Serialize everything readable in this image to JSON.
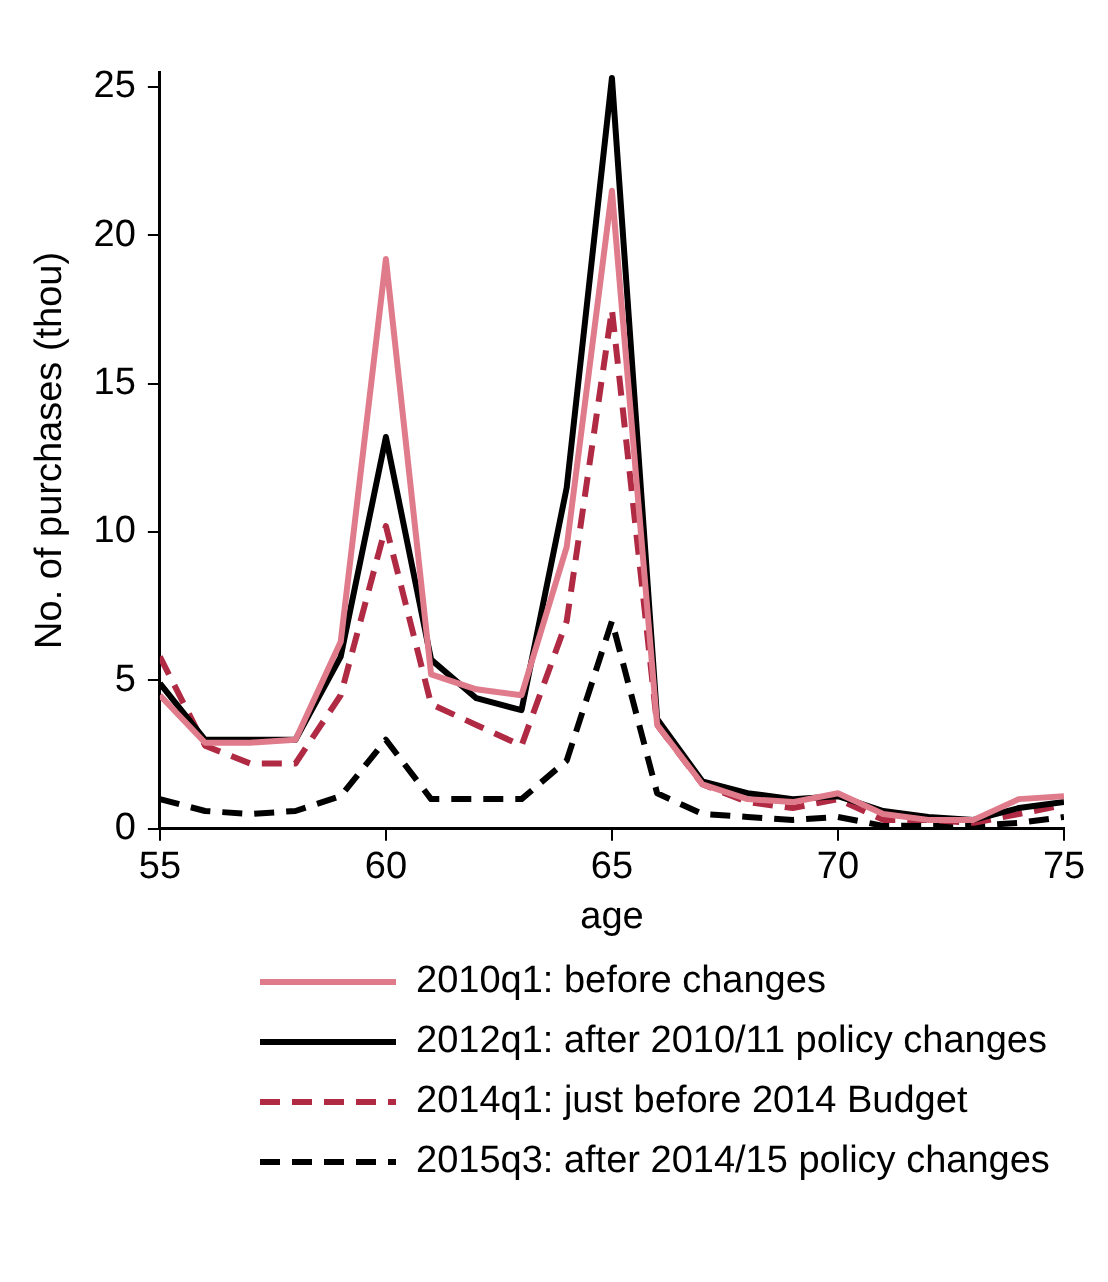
{
  "chart_data": {
    "type": "line",
    "xlabel": "age",
    "ylabel": "No. of purchases (thou)",
    "x": [
      55,
      56,
      57,
      58,
      59,
      60,
      61,
      62,
      63,
      64,
      65,
      66,
      67,
      68,
      69,
      70,
      71,
      72,
      73,
      74,
      75
    ],
    "xlim": [
      55,
      75
    ],
    "xticks": [
      55,
      60,
      65,
      70,
      75
    ],
    "ylim": [
      0,
      25.5
    ],
    "yticks": [
      0,
      5,
      10,
      15,
      20,
      25
    ],
    "grid": false,
    "legend": "bottom",
    "marker": "none",
    "series": [
      {
        "name": "2010q1: before changes",
        "color": "#e07b8c",
        "line_style": "solid",
        "values": [
          4.5,
          2.9,
          2.9,
          3.0,
          6.3,
          19.2,
          5.2,
          4.7,
          4.5,
          9.5,
          21.5,
          3.5,
          1.5,
          1.0,
          0.9,
          1.2,
          0.5,
          0.3,
          0.3,
          1.0,
          1.1
        ]
      },
      {
        "name": "2012q1: after 2010/11 policy changes",
        "color": "#000000",
        "line_style": "solid",
        "values": [
          4.9,
          3.0,
          3.0,
          3.0,
          5.8,
          13.2,
          5.7,
          4.4,
          4.0,
          11.5,
          25.3,
          3.7,
          1.6,
          1.2,
          1.0,
          1.1,
          0.6,
          0.4,
          0.3,
          0.7,
          0.9
        ]
      },
      {
        "name": "2014q1: just before 2014 Budget",
        "color": "#b02a44",
        "line_style": "dashed",
        "values": [
          5.8,
          2.8,
          2.2,
          2.2,
          4.5,
          10.2,
          4.2,
          3.5,
          2.8,
          7.0,
          17.5,
          3.5,
          1.5,
          0.9,
          0.7,
          1.0,
          0.3,
          0.3,
          0.2,
          0.5,
          0.8
        ]
      },
      {
        "name": "2015q3: after 2014/15 policy changes",
        "color": "#000000",
        "line_style": "dashed",
        "values": [
          1.0,
          0.6,
          0.5,
          0.6,
          1.1,
          3.0,
          1.0,
          1.0,
          1.0,
          2.3,
          7.0,
          1.2,
          0.5,
          0.4,
          0.3,
          0.4,
          0.1,
          0.1,
          0.1,
          0.2,
          0.4
        ]
      }
    ]
  }
}
